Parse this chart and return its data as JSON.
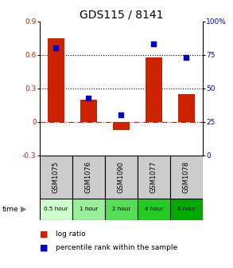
{
  "title": "GDS115 / 8141",
  "samples": [
    "GSM1075",
    "GSM1076",
    "GSM1090",
    "GSM1077",
    "GSM1078"
  ],
  "time_labels": [
    "0.5 hour",
    "1 hour",
    "2 hour",
    "4 hour",
    "6 hour"
  ],
  "log_ratio": [
    0.75,
    0.2,
    -0.07,
    0.58,
    0.25
  ],
  "percentile": [
    80,
    43,
    30,
    83,
    73
  ],
  "bar_color": "#cc2200",
  "scatter_color": "#0000cc",
  "ylim_left": [
    -0.3,
    0.9
  ],
  "ylim_right": [
    0,
    100
  ],
  "yticks_left": [
    -0.3,
    0,
    0.3,
    0.6,
    0.9
  ],
  "yticks_right": [
    0,
    25,
    50,
    75,
    100
  ],
  "hline_y_left": [
    0.0,
    0.3,
    0.6
  ],
  "hline_colors": [
    "#cc2200",
    "#000000",
    "#000000"
  ],
  "hline_styles": [
    "dashdot",
    "dotted",
    "dotted"
  ],
  "time_colors": [
    "#ccffcc",
    "#99ee99",
    "#55dd55",
    "#22cc22",
    "#00aa00"
  ],
  "bar_width": 0.5,
  "background_color": "#ffffff",
  "label_box_color": "#cccccc",
  "title_fontsize": 10,
  "tick_fontsize": 6.5,
  "legend_fontsize": 6.5
}
